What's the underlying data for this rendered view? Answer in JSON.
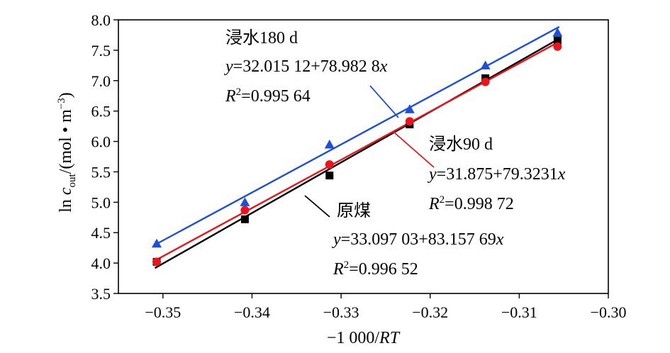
{
  "chart_data": {
    "type": "scatter",
    "title": "",
    "xlabel": "−1 000/RT",
    "ylabel": "ln c_out/(mol • m⁻³)",
    "xlim": [
      -0.355,
      -0.3
    ],
    "ylim": [
      3.5,
      8.0
    ],
    "x_ticks": [
      -0.35,
      -0.34,
      -0.33,
      -0.32,
      -0.31,
      -0.3
    ],
    "x_tick_labels": [
      "−0.35",
      "−0.34",
      "−0.33",
      "−0.32",
      "−0.31",
      "−0.30"
    ],
    "y_ticks": [
      3.5,
      4.0,
      4.5,
      5.0,
      5.5,
      6.0,
      6.5,
      7.0,
      7.5,
      8.0
    ],
    "y_tick_labels": [
      "3.5",
      "4.0",
      "4.5",
      "5.0",
      "5.5",
      "6.0",
      "6.5",
      "7.0",
      "7.5",
      "8.0"
    ],
    "grid": false,
    "legend": "none",
    "series": [
      {
        "label_name": "原煤",
        "color": "#000000",
        "marker": "square",
        "x": [
          -0.3507,
          -0.3408,
          -0.3313,
          -0.3223,
          -0.3138,
          -0.3057
        ],
        "y": [
          4.02,
          4.72,
          5.44,
          6.28,
          7.04,
          7.66
        ],
        "fit": {
          "intercept": 33.09703,
          "slope": 83.15769,
          "r2": 0.99652
        },
        "annotation_lines": [
          "原煤",
          "y=33.097 03+83.157 69x",
          "R²=0.996 52"
        ]
      },
      {
        "label_name": "浸水90 d",
        "color": "#e8161c",
        "marker": "circle",
        "x": [
          -0.3507,
          -0.3408,
          -0.3313,
          -0.3223,
          -0.3138,
          -0.3057
        ],
        "y": [
          4.02,
          4.87,
          5.62,
          6.33,
          6.98,
          7.56
        ],
        "fit": {
          "intercept": 31.875,
          "slope": 79.3231,
          "r2": 0.99872
        },
        "annotation_lines": [
          "浸水90 d",
          "y=31.875+79.3231x",
          "R²=0.998 72"
        ]
      },
      {
        "label_name": "浸水180 d",
        "color": "#1f4fd8",
        "marker": "triangle",
        "x": [
          -0.3507,
          -0.3408,
          -0.3313,
          -0.3223,
          -0.3138,
          -0.3057
        ],
        "y": [
          4.32,
          5.0,
          5.95,
          6.53,
          7.25,
          7.79
        ],
        "fit": {
          "intercept": 32.01512,
          "slope": 78.9828,
          "r2": 0.99564
        },
        "annotation_lines": [
          "浸水180 d",
          "y=32.015 12+78.982 8x",
          "R²=0.995 64"
        ]
      }
    ]
  }
}
